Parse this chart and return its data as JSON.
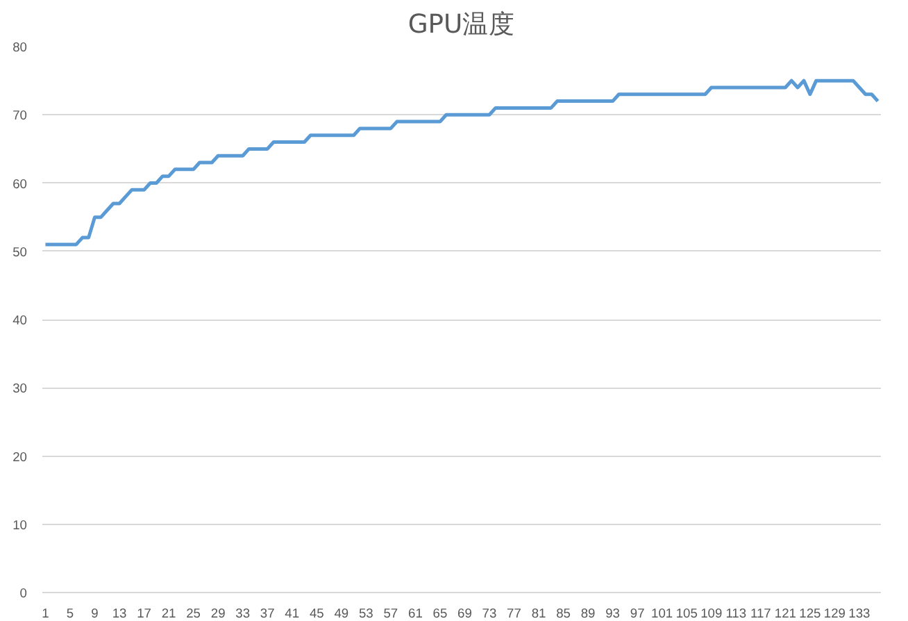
{
  "chart_data": {
    "type": "line",
    "title": "GPU温度",
    "categories": [
      "1",
      null,
      null,
      null,
      "5",
      null,
      null,
      null,
      "9",
      null,
      null,
      null,
      "13",
      null,
      null,
      null,
      "17",
      null,
      null,
      null,
      "21",
      null,
      null,
      null,
      "25",
      null,
      null,
      null,
      "29",
      null,
      null,
      null,
      "33",
      null,
      null,
      null,
      "37",
      null,
      null,
      null,
      "41",
      null,
      null,
      null,
      "45",
      null,
      null,
      null,
      "49",
      null,
      null,
      null,
      "53",
      null,
      null,
      null,
      "57",
      null,
      null,
      null,
      "61",
      null,
      null,
      null,
      "65",
      null,
      null,
      null,
      "69",
      null,
      null,
      null,
      "73",
      null,
      null,
      null,
      "77",
      null,
      null,
      null,
      "81",
      null,
      null,
      null,
      "85",
      null,
      null,
      null,
      "89",
      null,
      null,
      null,
      "93",
      null,
      null,
      null,
      "97",
      null,
      null,
      null,
      "101",
      null,
      null,
      null,
      "105",
      null,
      null,
      null,
      "109",
      null,
      null,
      null,
      "113",
      null,
      null,
      null,
      "117",
      null,
      null,
      null,
      "121",
      null,
      null,
      null,
      "125",
      null,
      null,
      null,
      "129",
      null,
      null,
      null,
      "133",
      null,
      null,
      null
    ],
    "series": [
      {
        "color": "#5b9bd5",
        "values": [
          51,
          51,
          51,
          51,
          51,
          51,
          52,
          52,
          55,
          55,
          56,
          57,
          57,
          58,
          59,
          59,
          59,
          60,
          60,
          61,
          61,
          62,
          62,
          62,
          62,
          63,
          63,
          63,
          64,
          64,
          64,
          64,
          64,
          65,
          65,
          65,
          65,
          66,
          66,
          66,
          66,
          66,
          66,
          67,
          67,
          67,
          67,
          67,
          67,
          67,
          67,
          68,
          68,
          68,
          68,
          68,
          68,
          69,
          69,
          69,
          69,
          69,
          69,
          69,
          69,
          70,
          70,
          70,
          70,
          70,
          70,
          70,
          70,
          71,
          71,
          71,
          71,
          71,
          71,
          71,
          71,
          71,
          71,
          72,
          72,
          72,
          72,
          72,
          72,
          72,
          72,
          72,
          72,
          73,
          73,
          73,
          73,
          73,
          73,
          73,
          73,
          73,
          73,
          73,
          73,
          73,
          73,
          73,
          74,
          74,
          74,
          74,
          74,
          74,
          74,
          74,
          74,
          74,
          74,
          74,
          74,
          75,
          74,
          75,
          73,
          75,
          75,
          75,
          75,
          75,
          75,
          75,
          74,
          73,
          73,
          72
        ]
      }
    ],
    "ylim": [
      0,
      80
    ],
    "yticks": [
      0,
      10,
      20,
      30,
      40,
      50,
      60,
      70,
      80
    ],
    "grid": "y",
    "marker": "none",
    "line_style": "solid"
  }
}
